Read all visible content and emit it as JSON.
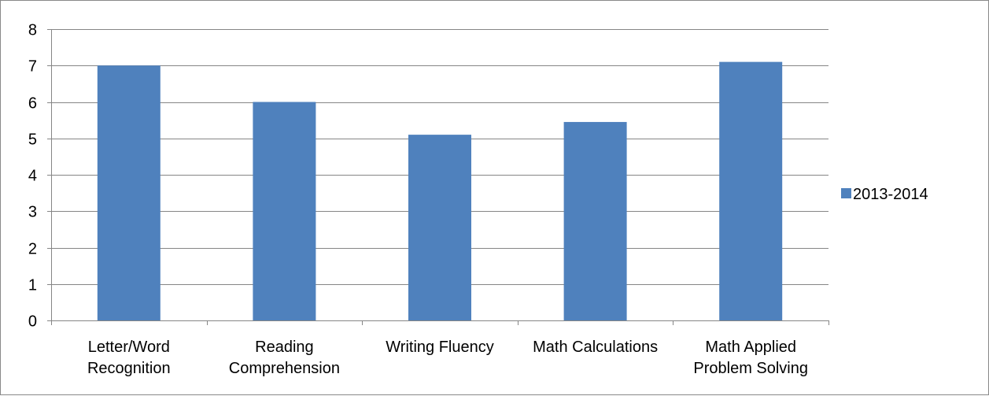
{
  "chart_data": {
    "type": "bar",
    "title": "",
    "xlabel": "",
    "ylabel": "",
    "categories": [
      [
        "Letter/Word",
        "Recognition"
      ],
      [
        "Reading",
        "Comprehension"
      ],
      [
        "Writing Fluency"
      ],
      [
        "Math Calculations"
      ],
      [
        "Math Applied",
        "Problem Solving"
      ]
    ],
    "series": [
      {
        "name": "2013-2014",
        "values": [
          7.0,
          6.0,
          5.1,
          5.45,
          7.1
        ]
      }
    ],
    "ylim": [
      0,
      8
    ],
    "yticks": [
      0,
      1,
      2,
      3,
      4,
      5,
      6,
      7,
      8
    ],
    "grid": true,
    "legend": "right",
    "colors": {
      "bar": "#4F81BD",
      "grid": "#868686",
      "axis": "#868686"
    }
  }
}
